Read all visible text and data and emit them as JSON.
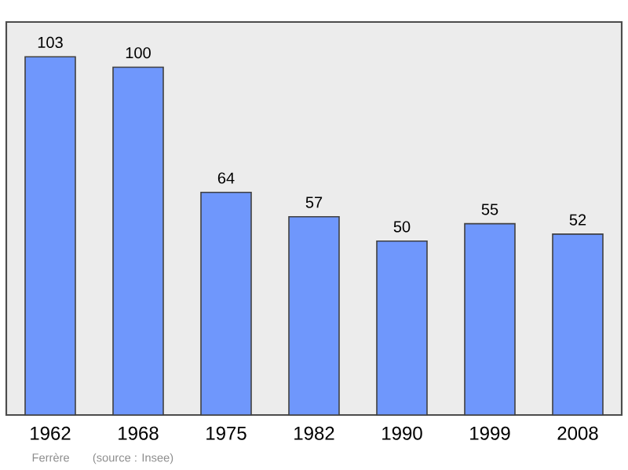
{
  "chart_data": {
    "type": "bar",
    "categories": [
      "1962",
      "1968",
      "1975",
      "1982",
      "1990",
      "1999",
      "2008"
    ],
    "values": [
      103,
      100,
      64,
      57,
      50,
      55,
      52
    ],
    "color": "#6f97fc",
    "ylim": [
      0,
      113
    ],
    "tick_labels": "x",
    "data_labels": true,
    "annotations": [
      "Ferrère",
      "(source : Insee)"
    ]
  }
}
